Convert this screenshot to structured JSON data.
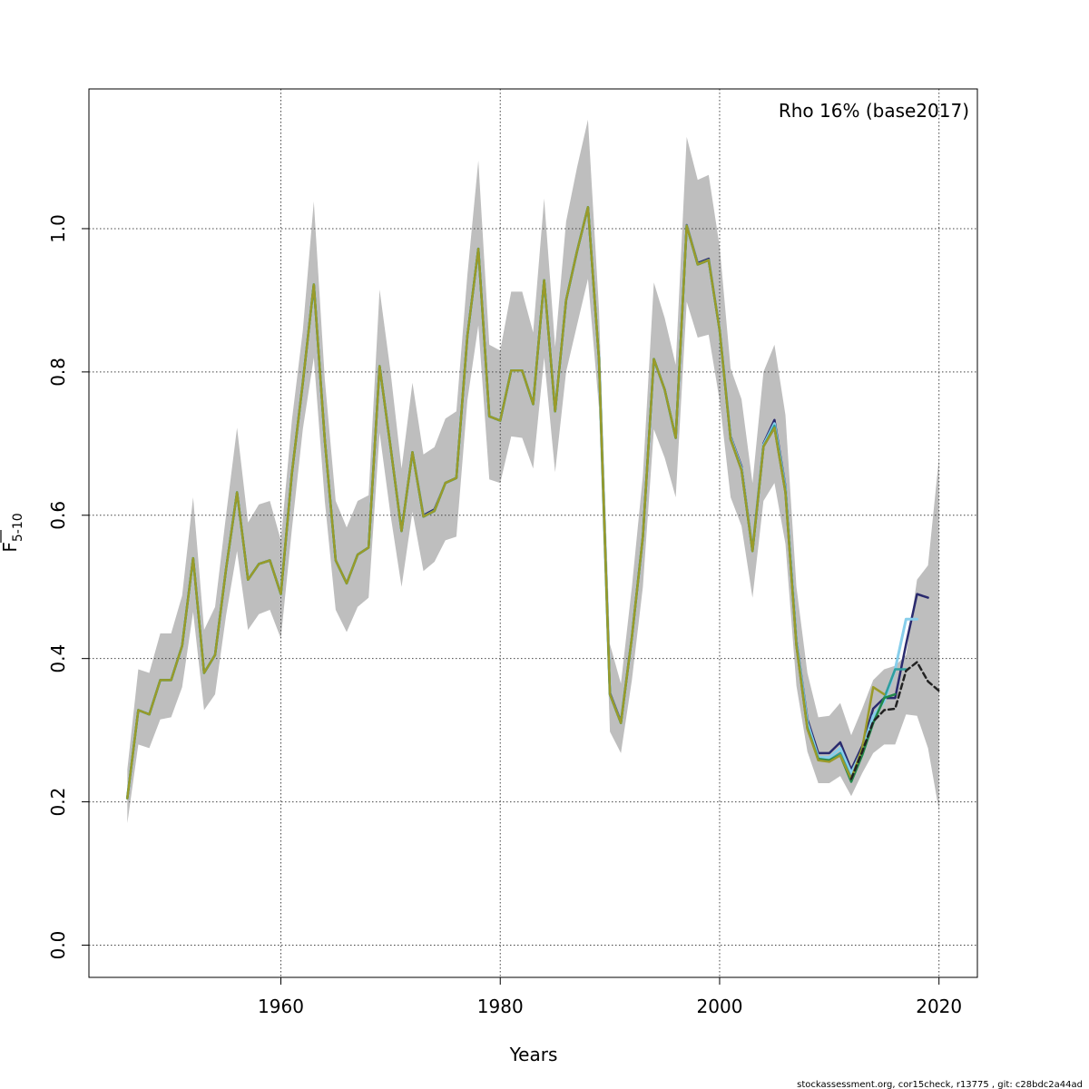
{
  "chart_data": {
    "type": "line",
    "title": "",
    "xlabel": "Years",
    "ylabel_main": "F",
    "ylabel_sub": "5-10",
    "annotation": "Rho 16% (base2017)",
    "footer": "stockassessment.org, cor15check, r13775 , git: c28bdc2a44ad",
    "xlim": [
      1942.5,
      2023.5
    ],
    "ylim": [
      -0.045,
      1.195
    ],
    "x_ticks": [
      1960,
      1980,
      2000,
      2020
    ],
    "x_tick_labels": [
      "1960",
      "1980",
      "2000",
      "2020"
    ],
    "y_ticks": [
      0.0,
      0.2,
      0.4,
      0.6,
      0.8,
      1.0
    ],
    "y_tick_labels": [
      "0.0",
      "0.2",
      "0.4",
      "0.6",
      "0.8",
      "1.0"
    ],
    "grid": true,
    "band_color": "#bebebe",
    "band": {
      "x": [
        1946,
        1947,
        1948,
        1949,
        1950,
        1951,
        1952,
        1953,
        1954,
        1955,
        1956,
        1957,
        1958,
        1959,
        1960,
        1961,
        1962,
        1963,
        1964,
        1965,
        1966,
        1967,
        1968,
        1969,
        1970,
        1971,
        1972,
        1973,
        1974,
        1975,
        1976,
        1977,
        1978,
        1979,
        1980,
        1981,
        1982,
        1983,
        1984,
        1985,
        1986,
        1987,
        1988,
        1989,
        1990,
        1991,
        1992,
        1993,
        1994,
        1995,
        1996,
        1997,
        1998,
        1999,
        2000,
        2001,
        2002,
        2003,
        2004,
        2005,
        2006,
        2007,
        2008,
        2009,
        2010,
        2011,
        2012,
        2013,
        2014,
        2015,
        2016,
        2017,
        2018,
        2019,
        2020
      ],
      "lower": [
        0.17,
        0.28,
        0.275,
        0.315,
        0.318,
        0.36,
        0.465,
        0.328,
        0.35,
        0.46,
        0.55,
        0.44,
        0.462,
        0.468,
        0.428,
        0.58,
        0.72,
        0.82,
        0.62,
        0.468,
        0.437,
        0.472,
        0.485,
        0.715,
        0.6,
        0.5,
        0.605,
        0.522,
        0.535,
        0.565,
        0.57,
        0.76,
        0.865,
        0.65,
        0.645,
        0.71,
        0.708,
        0.665,
        0.82,
        0.66,
        0.8,
        0.865,
        0.93,
        0.75,
        0.298,
        0.268,
        0.37,
        0.5,
        0.72,
        0.68,
        0.625,
        0.898,
        0.848,
        0.852,
        0.76,
        0.625,
        0.585,
        0.485,
        0.62,
        0.645,
        0.56,
        0.362,
        0.27,
        0.226,
        0.226,
        0.236,
        0.208,
        0.24,
        0.268,
        0.28,
        0.28,
        0.322,
        0.32,
        0.275,
        0.188
      ],
      "upper": [
        0.245,
        0.385,
        0.38,
        0.435,
        0.435,
        0.488,
        0.625,
        0.44,
        0.472,
        0.6,
        0.722,
        0.59,
        0.615,
        0.62,
        0.565,
        0.732,
        0.858,
        1.038,
        0.79,
        0.62,
        0.583,
        0.62,
        0.628,
        0.915,
        0.8,
        0.665,
        0.785,
        0.685,
        0.695,
        0.735,
        0.745,
        0.935,
        1.095,
        0.838,
        0.83,
        0.912,
        0.912,
        0.855,
        1.042,
        0.835,
        1.01,
        1.085,
        1.152,
        0.888,
        0.42,
        0.365,
        0.5,
        0.655,
        0.925,
        0.875,
        0.81,
        1.128,
        1.068,
        1.075,
        0.975,
        0.805,
        0.762,
        0.645,
        0.8,
        0.838,
        0.74,
        0.5,
        0.38,
        0.318,
        0.32,
        0.338,
        0.293,
        0.33,
        0.37,
        0.385,
        0.39,
        0.405,
        0.51,
        0.53,
        0.68
      ]
    },
    "series": [
      {
        "color": "#2a2a6e",
        "width": 2.5,
        "dashed": false,
        "x": [
          1946,
          1947,
          1948,
          1949,
          1950,
          1951,
          1952,
          1953,
          1954,
          1955,
          1956,
          1957,
          1958,
          1959,
          1960,
          1961,
          1962,
          1963,
          1964,
          1965,
          1966,
          1967,
          1968,
          1969,
          1970,
          1971,
          1972,
          1973,
          1974,
          1975,
          1976,
          1977,
          1978,
          1979,
          1980,
          1981,
          1982,
          1983,
          1984,
          1985,
          1986,
          1987,
          1988,
          1989,
          1990,
          1991,
          1992,
          1993,
          1994,
          1995,
          1996,
          1997,
          1998,
          1999,
          2000,
          2001,
          2002,
          2003,
          2004,
          2005,
          2006,
          2007,
          2008,
          2009,
          2010,
          2011,
          2012,
          2013,
          2014,
          2015,
          2016,
          2017,
          2018,
          2019
        ],
        "y": [
          0.205,
          0.328,
          0.322,
          0.37,
          0.37,
          0.418,
          0.54,
          0.38,
          0.405,
          0.525,
          0.632,
          0.51,
          0.532,
          0.537,
          0.49,
          0.658,
          0.785,
          0.922,
          0.705,
          0.537,
          0.505,
          0.545,
          0.555,
          0.808,
          0.695,
          0.578,
          0.688,
          0.6,
          0.608,
          0.645,
          0.652,
          0.85,
          0.972,
          0.738,
          0.732,
          0.802,
          0.802,
          0.755,
          0.928,
          0.745,
          0.9,
          0.968,
          1.03,
          0.818,
          0.352,
          0.312,
          0.43,
          0.57,
          0.818,
          0.775,
          0.708,
          1.005,
          0.952,
          0.958,
          0.858,
          0.71,
          0.668,
          0.552,
          0.7,
          0.733,
          0.64,
          0.425,
          0.315,
          0.268,
          0.268,
          0.283,
          0.245,
          0.278,
          0.33,
          0.345,
          0.345,
          0.42,
          0.49,
          0.485
        ]
      },
      {
        "color": "#87ceeb",
        "width": 3,
        "dashed": false,
        "x": [
          1946,
          1947,
          1948,
          1949,
          1950,
          1951,
          1952,
          1953,
          1954,
          1955,
          1956,
          1957,
          1958,
          1959,
          1960,
          1961,
          1962,
          1963,
          1964,
          1965,
          1966,
          1967,
          1968,
          1969,
          1970,
          1971,
          1972,
          1973,
          1974,
          1975,
          1976,
          1977,
          1978,
          1979,
          1980,
          1981,
          1982,
          1983,
          1984,
          1985,
          1986,
          1987,
          1988,
          1989,
          1990,
          1991,
          1992,
          1993,
          1994,
          1995,
          1996,
          1997,
          1998,
          1999,
          2000,
          2001,
          2002,
          2003,
          2004,
          2005,
          2006,
          2007,
          2008,
          2009,
          2010,
          2011,
          2012,
          2013,
          2014,
          2015,
          2016,
          2017,
          2018
        ],
        "y": [
          0.205,
          0.328,
          0.322,
          0.37,
          0.37,
          0.418,
          0.54,
          0.38,
          0.405,
          0.525,
          0.632,
          0.51,
          0.532,
          0.537,
          0.49,
          0.658,
          0.785,
          0.922,
          0.705,
          0.537,
          0.505,
          0.545,
          0.555,
          0.808,
          0.695,
          0.578,
          0.688,
          0.598,
          0.606,
          0.645,
          0.652,
          0.85,
          0.972,
          0.738,
          0.732,
          0.802,
          0.802,
          0.755,
          0.928,
          0.745,
          0.9,
          0.968,
          1.03,
          0.818,
          0.35,
          0.31,
          0.43,
          0.57,
          0.818,
          0.775,
          0.708,
          1.004,
          0.95,
          0.956,
          0.858,
          0.708,
          0.665,
          0.55,
          0.698,
          0.728,
          0.636,
          0.422,
          0.31,
          0.262,
          0.262,
          0.275,
          0.24,
          0.272,
          0.32,
          0.34,
          0.385,
          0.455,
          0.455
        ]
      },
      {
        "color": "#2e9e9e",
        "width": 2.5,
        "dashed": false,
        "x": [
          1946,
          1947,
          1948,
          1949,
          1950,
          1951,
          1952,
          1953,
          1954,
          1955,
          1956,
          1957,
          1958,
          1959,
          1960,
          1961,
          1962,
          1963,
          1964,
          1965,
          1966,
          1967,
          1968,
          1969,
          1970,
          1971,
          1972,
          1973,
          1974,
          1975,
          1976,
          1977,
          1978,
          1979,
          1980,
          1981,
          1982,
          1983,
          1984,
          1985,
          1986,
          1987,
          1988,
          1989,
          1990,
          1991,
          1992,
          1993,
          1994,
          1995,
          1996,
          1997,
          1998,
          1999,
          2000,
          2001,
          2002,
          2003,
          2004,
          2005,
          2006,
          2007,
          2008,
          2009,
          2010,
          2011,
          2012,
          2013,
          2014,
          2015,
          2016,
          2017
        ],
        "y": [
          0.205,
          0.328,
          0.322,
          0.37,
          0.37,
          0.418,
          0.54,
          0.38,
          0.405,
          0.525,
          0.632,
          0.51,
          0.532,
          0.537,
          0.49,
          0.658,
          0.785,
          0.922,
          0.705,
          0.537,
          0.505,
          0.545,
          0.555,
          0.808,
          0.695,
          0.578,
          0.688,
          0.598,
          0.606,
          0.645,
          0.652,
          0.85,
          0.972,
          0.738,
          0.732,
          0.802,
          0.802,
          0.755,
          0.928,
          0.745,
          0.9,
          0.968,
          1.03,
          0.818,
          0.35,
          0.31,
          0.43,
          0.57,
          0.818,
          0.775,
          0.708,
          1.004,
          0.95,
          0.956,
          0.858,
          0.706,
          0.663,
          0.55,
          0.696,
          0.725,
          0.634,
          0.42,
          0.305,
          0.258,
          0.258,
          0.268,
          0.233,
          0.268,
          0.31,
          0.345,
          0.385,
          0.385
        ]
      },
      {
        "color": "#22884a",
        "width": 2.5,
        "dashed": false,
        "x": [
          1946,
          1947,
          1948,
          1949,
          1950,
          1951,
          1952,
          1953,
          1954,
          1955,
          1956,
          1957,
          1958,
          1959,
          1960,
          1961,
          1962,
          1963,
          1964,
          1965,
          1966,
          1967,
          1968,
          1969,
          1970,
          1971,
          1972,
          1973,
          1974,
          1975,
          1976,
          1977,
          1978,
          1979,
          1980,
          1981,
          1982,
          1983,
          1984,
          1985,
          1986,
          1987,
          1988,
          1989,
          1990,
          1991,
          1992,
          1993,
          1994,
          1995,
          1996,
          1997,
          1998,
          1999,
          2000,
          2001,
          2002,
          2003,
          2004,
          2005,
          2006,
          2007,
          2008,
          2009,
          2010,
          2011,
          2012,
          2013,
          2014,
          2015,
          2016
        ],
        "y": [
          0.205,
          0.328,
          0.322,
          0.37,
          0.37,
          0.418,
          0.54,
          0.38,
          0.405,
          0.525,
          0.632,
          0.51,
          0.532,
          0.537,
          0.49,
          0.658,
          0.785,
          0.922,
          0.705,
          0.537,
          0.505,
          0.545,
          0.555,
          0.808,
          0.695,
          0.578,
          0.688,
          0.598,
          0.606,
          0.645,
          0.652,
          0.85,
          0.972,
          0.738,
          0.732,
          0.802,
          0.802,
          0.755,
          0.928,
          0.745,
          0.9,
          0.968,
          1.03,
          0.818,
          0.35,
          0.31,
          0.43,
          0.57,
          0.818,
          0.775,
          0.708,
          1.004,
          0.95,
          0.956,
          0.858,
          0.706,
          0.663,
          0.55,
          0.696,
          0.722,
          0.632,
          0.418,
          0.302,
          0.26,
          0.258,
          0.265,
          0.228,
          0.265,
          0.31,
          0.345,
          0.35
        ]
      },
      {
        "color": "#9a9a2a",
        "width": 2.5,
        "dashed": false,
        "x": [
          1946,
          1947,
          1948,
          1949,
          1950,
          1951,
          1952,
          1953,
          1954,
          1955,
          1956,
          1957,
          1958,
          1959,
          1960,
          1961,
          1962,
          1963,
          1964,
          1965,
          1966,
          1967,
          1968,
          1969,
          1970,
          1971,
          1972,
          1973,
          1974,
          1975,
          1976,
          1977,
          1978,
          1979,
          1980,
          1981,
          1982,
          1983,
          1984,
          1985,
          1986,
          1987,
          1988,
          1989,
          1990,
          1991,
          1992,
          1993,
          1994,
          1995,
          1996,
          1997,
          1998,
          1999,
          2000,
          2001,
          2002,
          2003,
          2004,
          2005,
          2006,
          2007,
          2008,
          2009,
          2010,
          2011,
          2012,
          2013,
          2014,
          2015
        ],
        "y": [
          0.205,
          0.328,
          0.322,
          0.37,
          0.37,
          0.418,
          0.54,
          0.38,
          0.405,
          0.525,
          0.632,
          0.51,
          0.532,
          0.537,
          0.49,
          0.658,
          0.785,
          0.922,
          0.705,
          0.537,
          0.505,
          0.545,
          0.555,
          0.808,
          0.695,
          0.578,
          0.688,
          0.598,
          0.606,
          0.645,
          0.652,
          0.85,
          0.972,
          0.738,
          0.732,
          0.802,
          0.802,
          0.755,
          0.928,
          0.745,
          0.9,
          0.968,
          1.03,
          0.818,
          0.35,
          0.31,
          0.43,
          0.57,
          0.818,
          0.775,
          0.708,
          1.004,
          0.95,
          0.956,
          0.858,
          0.706,
          0.663,
          0.55,
          0.696,
          0.722,
          0.632,
          0.418,
          0.302,
          0.258,
          0.256,
          0.265,
          0.232,
          0.275,
          0.36,
          0.35
        ]
      },
      {
        "color": "#222222",
        "width": 2.5,
        "dashed": true,
        "x": [
          2012,
          2013,
          2014,
          2015,
          2016,
          2017,
          2018,
          2019,
          2020
        ],
        "y": [
          0.232,
          0.27,
          0.312,
          0.328,
          0.33,
          0.383,
          0.395,
          0.368,
          0.355
        ]
      }
    ]
  }
}
